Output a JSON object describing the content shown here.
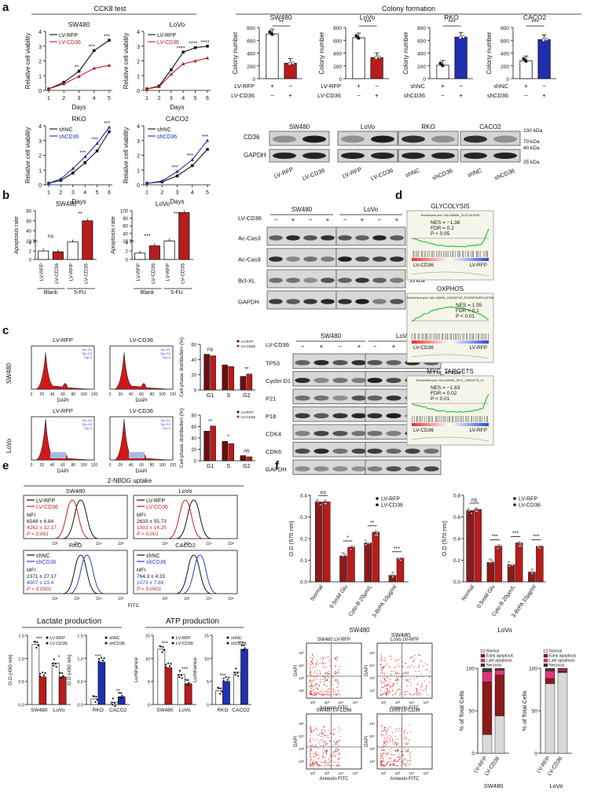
{
  "panel_letters": [
    "a",
    "b",
    "c",
    "d",
    "e",
    "f"
  ],
  "panel_a": {
    "cck8_title": "CCK8 test",
    "colony_title": "Colony formation",
    "cck8": [
      {
        "cell": "SW480",
        "xlabel": "Days",
        "ylabel": "Relative cell viability",
        "xticks": [
          "1",
          "2",
          "3",
          "4",
          "5"
        ],
        "yticks": [
          "0",
          "1",
          "2",
          "3",
          "4"
        ],
        "legend": [
          "LV-RFP",
          "LV-CD36"
        ],
        "sig": [
          "**",
          "***",
          "***"
        ],
        "series": [
          {
            "name": "LV-RFP",
            "color": "#111111",
            "values": [
              0.1,
              0.55,
              1.3,
              2.7,
              3.4
            ]
          },
          {
            "name": "LV-CD36",
            "color": "#b81c1c",
            "values": [
              0.1,
              0.45,
              0.95,
              1.5,
              1.7
            ]
          }
        ]
      },
      {
        "cell": "LoVo",
        "xlabel": "Days",
        "ylabel": "Relative cell viability",
        "xticks": [
          "1",
          "2",
          "3",
          "4",
          "5",
          "6"
        ],
        "yticks": [
          "0",
          "1",
          "2",
          "3",
          "4"
        ],
        "legend": [
          "LV-RFP",
          "LV-CD36"
        ],
        "sig": [
          "****",
          "****",
          "****"
        ],
        "series": [
          {
            "name": "LV-RFP",
            "color": "#111111",
            "values": [
              0.1,
              0.3,
              1.4,
              2.6,
              2.9,
              3.0
            ]
          },
          {
            "name": "LV-CD36",
            "color": "#b81c1c",
            "values": [
              0.1,
              0.25,
              1.1,
              1.8,
              2.0,
              2.2
            ]
          }
        ]
      },
      {
        "cell": "RKO",
        "xlabel": "Days",
        "ylabel": "Relative cell viability",
        "xticks": [
          "1",
          "2",
          "3",
          "4",
          "5",
          "6"
        ],
        "yticks": [
          "0",
          "1",
          "2",
          "3",
          "4"
        ],
        "legend": [
          "shNC",
          "shCD36"
        ],
        "sig": [
          "***",
          "***",
          "***"
        ],
        "series": [
          {
            "name": "shNC",
            "color": "#111111",
            "values": [
              0.1,
              0.3,
              0.8,
              1.5,
              2.3,
              3.6
            ]
          },
          {
            "name": "shCD36",
            "color": "#1f2fae",
            "values": [
              0.1,
              0.4,
              1.1,
              1.9,
              2.8,
              3.9
            ]
          }
        ]
      },
      {
        "cell": "CACO2",
        "xlabel": "Days",
        "ylabel": "Relative cell viability",
        "xticks": [
          "1",
          "2",
          "3",
          "4",
          "5"
        ],
        "yticks": [
          "0",
          "1",
          "2",
          "3",
          "4"
        ],
        "legend": [
          "shNC",
          "shCD36"
        ],
        "sig": [
          "***",
          "***",
          "***"
        ],
        "series": [
          {
            "name": "shNC",
            "color": "#111111",
            "values": [
              0.1,
              0.2,
              0.6,
              1.3,
              2.4
            ]
          },
          {
            "name": "shCD36",
            "color": "#1f2fae",
            "values": [
              0.1,
              0.25,
              0.9,
              1.7,
              3.0
            ]
          }
        ]
      }
    ],
    "colony": [
      {
        "cell": "SW480",
        "ylabel": "Colony number",
        "yticks": [
          "0",
          "200",
          "400",
          "600",
          "800"
        ],
        "ymax": 800,
        "rows": [
          "LV-RFP",
          "LV-CD36"
        ],
        "marks": [
          [
            "+",
            "−"
          ],
          [
            "−",
            "+"
          ]
        ],
        "sig": "**",
        "bars": [
          {
            "v": 700,
            "c": "#ffffff"
          },
          {
            "v": 240,
            "c": "#b81c1c"
          }
        ]
      },
      {
        "cell": "LoVo",
        "ylabel": "Colony number",
        "yticks": [
          "0",
          "200",
          "400",
          "600",
          "800"
        ],
        "ymax": 800,
        "rows": [
          "LV-RFP",
          "LV-CD36"
        ],
        "marks": [
          [
            "+",
            "−"
          ],
          [
            "−",
            "+"
          ]
        ],
        "sig": "***",
        "bars": [
          {
            "v": 640,
            "c": "#ffffff"
          },
          {
            "v": 330,
            "c": "#b81c1c"
          }
        ]
      },
      {
        "cell": "RKO",
        "ylabel": "Colony number",
        "yticks": [
          "0",
          "200",
          "400",
          "600",
          "800"
        ],
        "ymax": 800,
        "rows": [
          "shNC",
          "shCD36"
        ],
        "marks": [
          [
            "+",
            "−"
          ],
          [
            "−",
            "+"
          ]
        ],
        "sig": "***",
        "bars": [
          {
            "v": 210,
            "c": "#ffffff"
          },
          {
            "v": 650,
            "c": "#1f2fae"
          }
        ]
      },
      {
        "cell": "CACO2",
        "ylabel": "Colony number",
        "yticks": [
          "0",
          "200",
          "400",
          "600",
          "800"
        ],
        "ymax": 800,
        "rows": [
          "shNC",
          "shCD36"
        ],
        "marks": [
          [
            "+",
            "−"
          ],
          [
            "−",
            "+"
          ]
        ],
        "sig": "***",
        "bars": [
          {
            "v": 280,
            "c": "#ffffff"
          },
          {
            "v": 610,
            "c": "#1f2fae"
          }
        ]
      }
    ],
    "wb": {
      "cells": [
        "SW480",
        "LoVo",
        "RKO",
        "CACO2"
      ],
      "rows": [
        "CD36",
        "GAPDH"
      ],
      "kda": [
        "100 kDa",
        "70 kDa",
        "40 kDa",
        "35 kDa"
      ],
      "lanes": [
        [
          "LV-RFP",
          "LV-CD36"
        ],
        [
          "LV-RFP",
          "LV-CD36"
        ],
        [
          "shNC",
          "shCD36"
        ],
        [
          "shNC",
          "shCD36"
        ]
      ]
    }
  },
  "panel_b": {
    "apoptosis": [
      {
        "cell": "SW480",
        "ylabel": "Apoptosis rate",
        "yticks": [
          "0",
          "2",
          "4",
          "20",
          "40",
          "60",
          "80"
        ],
        "groups": [
          "Blank",
          "5-FU"
        ],
        "lanes": [
          "LV-RFP",
          "LV-CD36",
          "LV-RFP",
          "LV-CD36"
        ],
        "sig": [
          "ns",
          "**"
        ],
        "bars": [
          2,
          1.8,
          18,
          60
        ]
      },
      {
        "cell": "LoVo",
        "ylabel": "Apoptosis rate",
        "yticks": [
          "0",
          "2",
          "4",
          "20",
          "40",
          "60",
          "80",
          "100"
        ],
        "groups": [
          "Blank",
          "5-FU"
        ],
        "lanes": [
          "LV-RFP",
          "LV-CD36",
          "LV-RFP",
          "LV-CD36"
        ],
        "sig": [
          "***",
          "***"
        ],
        "bars": [
          1.5,
          3.2,
          20,
          95
        ]
      }
    ],
    "wb": {
      "cells": [
        "SW480",
        "LoVo"
      ],
      "treat_label": "LV-CD36",
      "marks": [
        "−",
        "+",
        "−",
        "+"
      ],
      "rows": [
        "Ac-Cas3",
        "Ac-Cas9",
        "Bcl-XL",
        "GAPDH"
      ],
      "kda": [
        "25 kDa",
        "15 kDa",
        "10 kDa",
        "55 kDa",
        "25 kDa",
        "35 kDa",
        "25 kDa",
        "40 kDa",
        "35 kDa"
      ]
    }
  },
  "panel_c": {
    "flow": [
      {
        "row": "SW480",
        "title": "LV-RFP",
        "xlabel": "DAPI"
      },
      {
        "row": "SW480",
        "title": "LV-CD36",
        "xlabel": "DAPI"
      },
      {
        "row": "LoVo",
        "title": "LV-RFP",
        "xlabel": "DAPI"
      },
      {
        "row": "LoVo",
        "title": "LV-CD36",
        "xlabel": "DAPI"
      }
    ],
    "flow_ticks": [
      "0",
      "20",
      "40",
      "60",
      "80",
      "100",
      "120"
    ],
    "cycle": [
      {
        "cell": "SW480",
        "ylabel": "Cell phase distribution (%)",
        "groups": [
          "G1",
          "S",
          "G2"
        ],
        "legend": [
          "LV-RFP",
          "LV-CD36"
        ],
        "sig": [
          "ns",
          "",
          "**"
        ],
        "yticks": [
          "0",
          "20",
          "40",
          "60"
        ],
        "rfp": [
          47,
          33,
          18
        ],
        "cd36": [
          45,
          31,
          21
        ]
      },
      {
        "cell": "LoVo",
        "ylabel": "Cell phase distribution (%)",
        "groups": [
          "G1",
          "S",
          "G2"
        ],
        "legend": [
          "LV-RFP",
          "LV-CD36"
        ],
        "sig": [
          "**",
          "*",
          "ns"
        ],
        "yticks": [
          "0",
          "20",
          "40",
          "60",
          "80"
        ],
        "rfp": [
          52,
          34,
          9
        ],
        "cd36": [
          61,
          30,
          7
        ]
      }
    ],
    "wb": {
      "cells": [
        "SW480",
        "LoVo"
      ],
      "treat_label": "LV-CD36",
      "marks": [
        "−",
        "+",
        "−",
        "+"
      ],
      "rows": [
        "TP53",
        "Cyclin D1",
        "P21",
        "P18",
        "CDK4",
        "CDK6",
        "GAPDH"
      ],
      "kda": [
        "55 kDa",
        "40 kDa",
        "35 kDa",
        "25 kDa",
        "25 kDa",
        "15 kDa",
        "35 kDa",
        "40 kDa",
        "35 kDa"
      ]
    }
  },
  "panel_d": [
    {
      "title": "GLYCOLYSIS",
      "sub": "Enrichment plot: HALLMARK_GLYCOLYSIS",
      "stats": [
        "NES = −1.38",
        "FDR = 0.2",
        "P < 0.05"
      ],
      "left": "LV-CD36",
      "right": "LV-RFP",
      "dir": "neg"
    },
    {
      "title": "OXPHOS",
      "sub": "Enrichment plot: HALLMARK_OXIDATIVE_PHOSPHORYLATION",
      "stats": [
        "NES = 1.55",
        "FDR = 0.1",
        "P < 0.01"
      ],
      "left": "LV-CD36",
      "right": "LV-RFP",
      "dir": "pos"
    },
    {
      "title": "MYC_TARGETS",
      "sub": "Enrichment plot: HALLMARK_MYC_TARGETS_V1",
      "stats": [
        "NES = −1.83",
        "FDR = 0.02",
        "P < 0.01"
      ],
      "left": "LV-CD36",
      "right": "LV-RFP",
      "dir": "neg"
    }
  ],
  "panel_e": {
    "title": "2-NBDG uptake",
    "xlabel": "FITC",
    "hist": [
      {
        "cell": "SW480",
        "legend": [
          "LV-RFP",
          "LV-CD36"
        ],
        "mfi": "MFI",
        "v1": "6548 ± 6.84",
        "v2": "4262 ± 32.17",
        "p": "P < 0.001",
        "c2": "#c81e1e"
      },
      {
        "cell": "LoVo",
        "legend": [
          "LV-RFP",
          "LV-CD36"
        ],
        "mfi": "MFI",
        "v1": "2633 ± 55.73",
        "v2": "1003 ± 14.25",
        "p": "P < 0.001",
        "c2": "#c81e1e"
      },
      {
        "cell": "RKO",
        "legend": [
          "shNC",
          "shCD36"
        ],
        "mfi": "MFI",
        "v1": "2371 ± 27.17",
        "v2": "4007 ± 23.4",
        "p": "P < 0.0001",
        "c2": "#2a3cc4"
      },
      {
        "cell": "CACO2",
        "legend": [
          "shNC",
          "shCD36"
        ],
        "mfi": "MFI",
        "v1": "764.3 ± 4.33",
        "v2": "1073 ± 7.69",
        "p": "P < 0.0001",
        "c2": "#2a3cc4"
      }
    ],
    "hist_ticks": [
      "10²",
      "10³",
      "10⁴",
      "10⁵"
    ],
    "lactate": {
      "title": "Lactate production",
      "ylabel": "O.D (450 nm)",
      "a": {
        "groups": [
          "SW480",
          "LoVo"
        ],
        "legend": [
          "LV-RFP",
          "LV-CD36"
        ],
        "sig": [
          "***",
          "*"
        ],
        "yticks": [
          "0.0",
          "0.5",
          "1.0",
          "1.5"
        ],
        "ymax": 1.5,
        "vals": [
          [
            1.3,
            0.6
          ],
          [
            0.9,
            0.6
          ]
        ],
        "c": "#b81c1c"
      },
      "b": {
        "groups": [
          "RKO",
          "CACO2"
        ],
        "legend": [
          "shNC",
          "shCD36"
        ],
        "sig": [
          "***",
          "**"
        ],
        "yticks": [
          "0.0",
          "0.5",
          "1.0",
          "1.5"
        ],
        "ymax": 1.5,
        "vals": [
          [
            0.12,
            0.92
          ],
          [
            0.05,
            0.17
          ]
        ],
        "c": "#1f2fae"
      }
    },
    "atp": {
      "title": "ATP production",
      "ylabel": "Luminance",
      "a": {
        "groups": [
          "SW480",
          "LoVo"
        ],
        "legend": [
          "LV-RFP",
          "LV-CD36"
        ],
        "sig": [
          "***",
          "***"
        ],
        "yticks": [
          "0",
          "5",
          "10",
          "15"
        ],
        "ymax": 15,
        "vals": [
          [
            12,
            8
          ],
          [
            6.5,
            4.5
          ]
        ],
        "c": "#b81c1c"
      },
      "b": {
        "groups": [
          "RKO",
          "CACO2"
        ],
        "legend": [
          "shNC",
          "shCD36"
        ],
        "sig": [
          "***",
          "***"
        ],
        "yticks": [
          "0",
          "5",
          "10",
          "15"
        ],
        "ymax": 15,
        "vals": [
          [
            3,
            5
          ],
          [
            7,
            12
          ]
        ],
        "c": "#1f2fae"
      }
    }
  },
  "panel_f": {
    "od": [
      {
        "cell": "SW480",
        "ylabel": "O.D (570 nm)",
        "legend": [
          "LV-RFP",
          "LV-CD36"
        ],
        "groups": [
          "Normal",
          "0.5mM Glu",
          "Cyto-B 20μm/L",
          "3-BrPA 10μg/ml"
        ],
        "sig": [
          "ns",
          "*",
          "**",
          "***"
        ],
        "yticks": [
          "0.0",
          "0.1",
          "0.2",
          "0.3",
          "0.4"
        ],
        "ymax": 0.4,
        "rfp": [
          0.37,
          0.12,
          0.18,
          0.03
        ],
        "cd36": [
          0.37,
          0.16,
          0.23,
          0.11
        ]
      },
      {
        "cell": "LoVo",
        "ylabel": "O.D (570 nm)",
        "legend": [
          "LV-RFP",
          "LV-CD36"
        ],
        "groups": [
          "Normal",
          "0.5mM Glu",
          "Cyto-B 20μm/L",
          "3-BrPA 10μg/ml"
        ],
        "sig": [
          "ns",
          "***",
          "***",
          "***"
        ],
        "yticks": [
          "0.0",
          "0.2",
          "0.4",
          "0.6",
          "0.8"
        ],
        "ymax": 0.8,
        "rfp": [
          0.66,
          0.18,
          0.16,
          0.09
        ],
        "cd36": [
          0.67,
          0.33,
          0.36,
          0.33
        ]
      }
    ],
    "dot": [
      {
        "title": "SW480 LV-RFP"
      },
      {
        "title": "LoVo LV-RFP"
      },
      {
        "title": "SW480 LV-CD36"
      },
      {
        "title": "LoVo LV-CD36"
      }
    ],
    "dot_xlabel": "Annexin-FITC",
    "dot_ylabel": "DAPI",
    "dot_ticks": [
      "10²",
      "10³",
      "10⁴",
      "10⁵"
    ],
    "dot_quads": [
      "Q1",
      "Q2",
      "Q3",
      "Q4"
    ],
    "stack": [
      {
        "cell": "SW480",
        "ylabel": "% of Total Cells",
        "lanes": [
          "LV-RFP",
          "LV-CD36"
        ],
        "legend": [
          "Normal",
          "Early apoptosis",
          "Late apoptosis",
          "Necrosis"
        ],
        "vals": [
          [
            22,
            62,
            12,
            4
          ],
          [
            44,
            48,
            6,
            2
          ]
        ]
      },
      {
        "cell": "LoVo",
        "ylabel": "% of Total Cells",
        "lanes": [
          "LV-RFP",
          "LV-CD36"
        ],
        "legend": [
          "Normal",
          "Early apoptosis",
          "Late apoptosis",
          "Necrosis"
        ],
        "vals": [
          [
            82,
            6,
            9,
            3
          ],
          [
            95,
            2,
            2,
            1
          ]
        ]
      }
    ],
    "stack_ticks": [
      "0",
      "50",
      "100"
    ],
    "stack_colors": [
      "#d9d9d9",
      "#8b1a1a",
      "#e0357a",
      "#3a3a3a"
    ]
  }
}
